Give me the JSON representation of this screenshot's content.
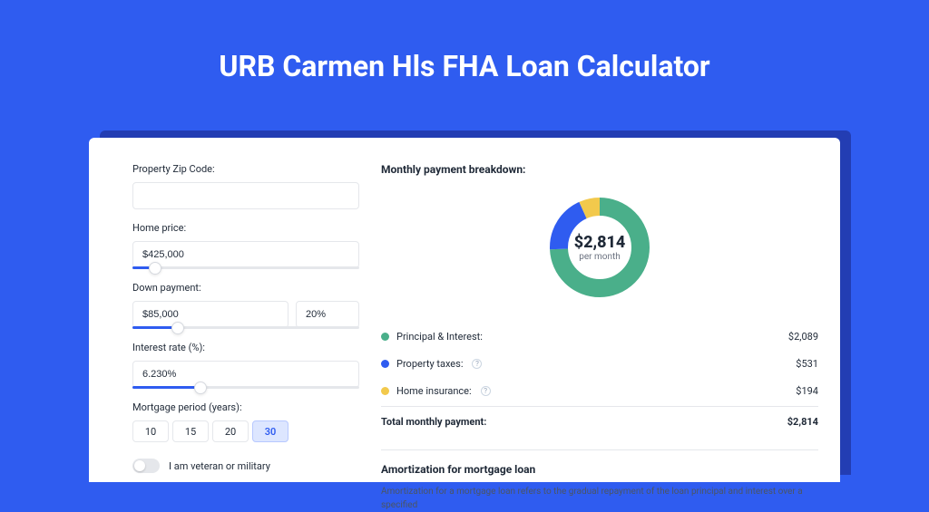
{
  "page": {
    "title": "URB Carmen Hls FHA Loan Calculator",
    "bg_color": "#2f5cf0",
    "shadow_color": "#233db3",
    "card_bg": "#ffffff"
  },
  "form": {
    "zip": {
      "label": "Property Zip Code:",
      "value": ""
    },
    "home_price": {
      "label": "Home price:",
      "value": "$425,000",
      "slider_pct": 10
    },
    "down_payment": {
      "label": "Down payment:",
      "value": "$85,000",
      "pct_value": "20%",
      "slider_pct": 20
    },
    "interest_rate": {
      "label": "Interest rate (%):",
      "value": "6.230%",
      "slider_pct": 30
    },
    "periods": {
      "label": "Mortgage period (years):",
      "options": [
        "10",
        "15",
        "20",
        "30"
      ],
      "active_index": 3
    },
    "veteran": {
      "label": "I am veteran or military",
      "on": false
    }
  },
  "breakdown": {
    "title": "Monthly payment breakdown:",
    "center_amount": "$2,814",
    "center_sub": "per month",
    "items": [
      {
        "label": "Principal & Interest:",
        "amount": "$2,089",
        "color": "#4aaf8a",
        "info": false
      },
      {
        "label": "Property taxes:",
        "amount": "$531",
        "color": "#2f5cf0",
        "info": true
      },
      {
        "label": "Home insurance:",
        "amount": "$194",
        "color": "#f2c94c",
        "info": true
      }
    ],
    "total": {
      "label": "Total monthly payment:",
      "amount": "$2,814"
    }
  },
  "donut": {
    "radius": 45,
    "stroke": 20,
    "segments": [
      {
        "color": "#4aaf8a",
        "pct": 74.2
      },
      {
        "color": "#2f5cf0",
        "pct": 18.9
      },
      {
        "color": "#f2c94c",
        "pct": 6.9
      }
    ]
  },
  "amort": {
    "title": "Amortization for mortgage loan",
    "text": "Amortization for a mortgage loan refers to the gradual repayment of the loan principal and interest over a specified"
  }
}
